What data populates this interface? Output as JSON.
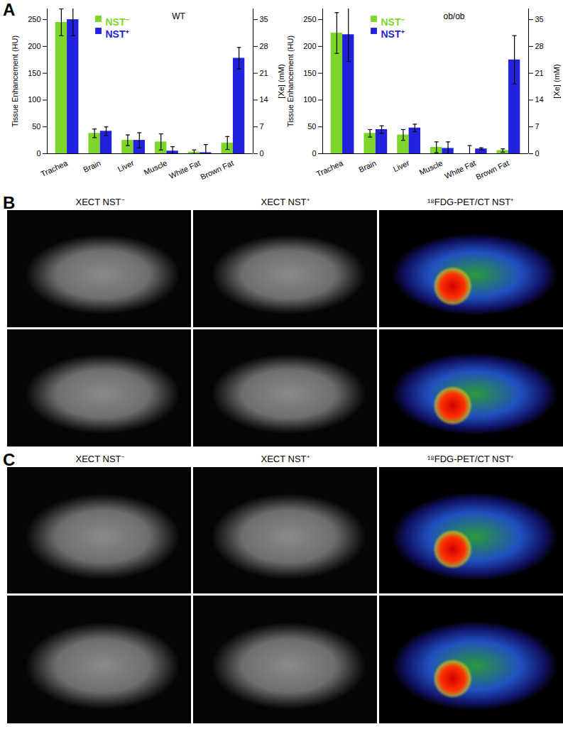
{
  "panel_labels": [
    "A",
    "B",
    "C"
  ],
  "chart_data": [
    {
      "type": "bar",
      "title": "WT",
      "categories": [
        "Trachea",
        "Brain",
        "Liver",
        "Muscle",
        "White Fat",
        "Brown Fat"
      ],
      "series": [
        {
          "name": "NST⁻",
          "color": "#7ed62a",
          "values": [
            245,
            38,
            25,
            22,
            3,
            20
          ],
          "errors": [
            25,
            8,
            10,
            15,
            4,
            12
          ]
        },
        {
          "name": "NST⁺",
          "color": "#2222dd",
          "values": [
            250,
            42,
            25,
            5,
            2,
            178
          ],
          "errors": [
            30,
            8,
            14,
            8,
            15,
            20
          ]
        }
      ],
      "ylabel": "Tissue Enhancement (HU)",
      "ylim": [
        0,
        270
      ],
      "yticks": [
        0,
        50,
        100,
        150,
        200,
        250
      ],
      "y2label": "[Xe] (mM)",
      "y2lim": [
        0,
        37.8
      ],
      "y2ticks": [
        0,
        7,
        14,
        21,
        28,
        35
      ],
      "legend": "top-left"
    },
    {
      "type": "bar",
      "title": "ob/ob",
      "categories": [
        "Trachea",
        "Brain",
        "Liver",
        "Muscle",
        "White Fat",
        "Brown Fat"
      ],
      "series": [
        {
          "name": "NST⁻",
          "color": "#7ed62a",
          "values": [
            225,
            38,
            35,
            12,
            0,
            6
          ],
          "errors": [
            38,
            7,
            10,
            10,
            15,
            3
          ]
        },
        {
          "name": "NST⁺",
          "color": "#2222dd",
          "values": [
            222,
            45,
            48,
            10,
            9,
            175
          ],
          "errors": [
            50,
            7,
            7,
            12,
            2,
            45
          ]
        }
      ],
      "ylabel": "Tissue Enhancement (HU)",
      "ylim": [
        0,
        270
      ],
      "yticks": [
        0,
        50,
        100,
        150,
        200,
        250
      ],
      "y2label": "[Xe] (mM)",
      "y2lim": [
        0,
        37.8
      ],
      "y2ticks": [
        0,
        7,
        14,
        21,
        28,
        35
      ],
      "legend": "top-left"
    }
  ],
  "image_panels": [
    {
      "titles": [
        "XECT NST⁻",
        "XECT NST⁺",
        "¹⁸FDG-PET/CT NST⁺"
      ]
    },
    {
      "titles": [
        "XECT NST⁻",
        "XECT NST⁺",
        "¹⁸FDG-PET/CT NST⁺"
      ]
    }
  ]
}
